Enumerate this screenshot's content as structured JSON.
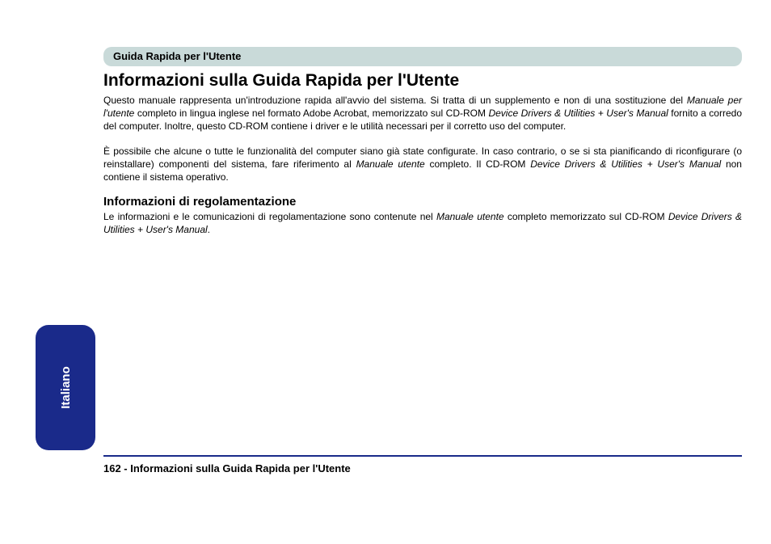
{
  "header": {
    "bar_label": "Guida Rapida per l'Utente",
    "bar_bg": "#c9dad9"
  },
  "title": "Informazioni sulla Guida Rapida per l'Utente",
  "para1_a": "Questo manuale rappresenta un'introduzione rapida all'avvio del sistema. Si tratta di un supplemento e non di una sostituzione del ",
  "para1_i1": "Manuale per l'utente",
  "para1_b": " completo in lingua inglese nel formato Adobe Acrobat, memorizzato sul CD-ROM ",
  "para1_i2": "Device Drivers & Utilities + User's Manual",
  "para1_c": " fornito a corredo del computer. Inoltre, questo CD-ROM contiene i driver e le utilità necessari per il corretto uso del computer.",
  "para2_a": "È possibile che alcune o tutte le funzionalità del computer siano già state configurate. In caso contrario, o se si sta pianificando di riconfigurare (o reinstallare) componenti del sistema, fare riferimento al ",
  "para2_i1": "Manuale utente",
  "para2_b": " completo. Il CD-ROM ",
  "para2_i2": "Device Drivers & Utilities + User's Manual",
  "para2_c": " non contiene il sistema operativo.",
  "subheading": "Informazioni di regolamentazione",
  "para3_a": "Le informazioni e le comunicazioni di regolamentazione sono contenute nel ",
  "para3_i1": "Manuale utente",
  "para3_b": " completo memorizzato sul CD-ROM ",
  "para3_i2": "Device Drivers & Utilities + User's Manual",
  "para3_c": ".",
  "tab": {
    "label": "Italiano",
    "bg": "#1a2a8a"
  },
  "footer": {
    "page_number": "162 -",
    "title": "  Informazioni sulla Guida Rapida per l'Utente",
    "rule_color": "#1a2a8a"
  }
}
